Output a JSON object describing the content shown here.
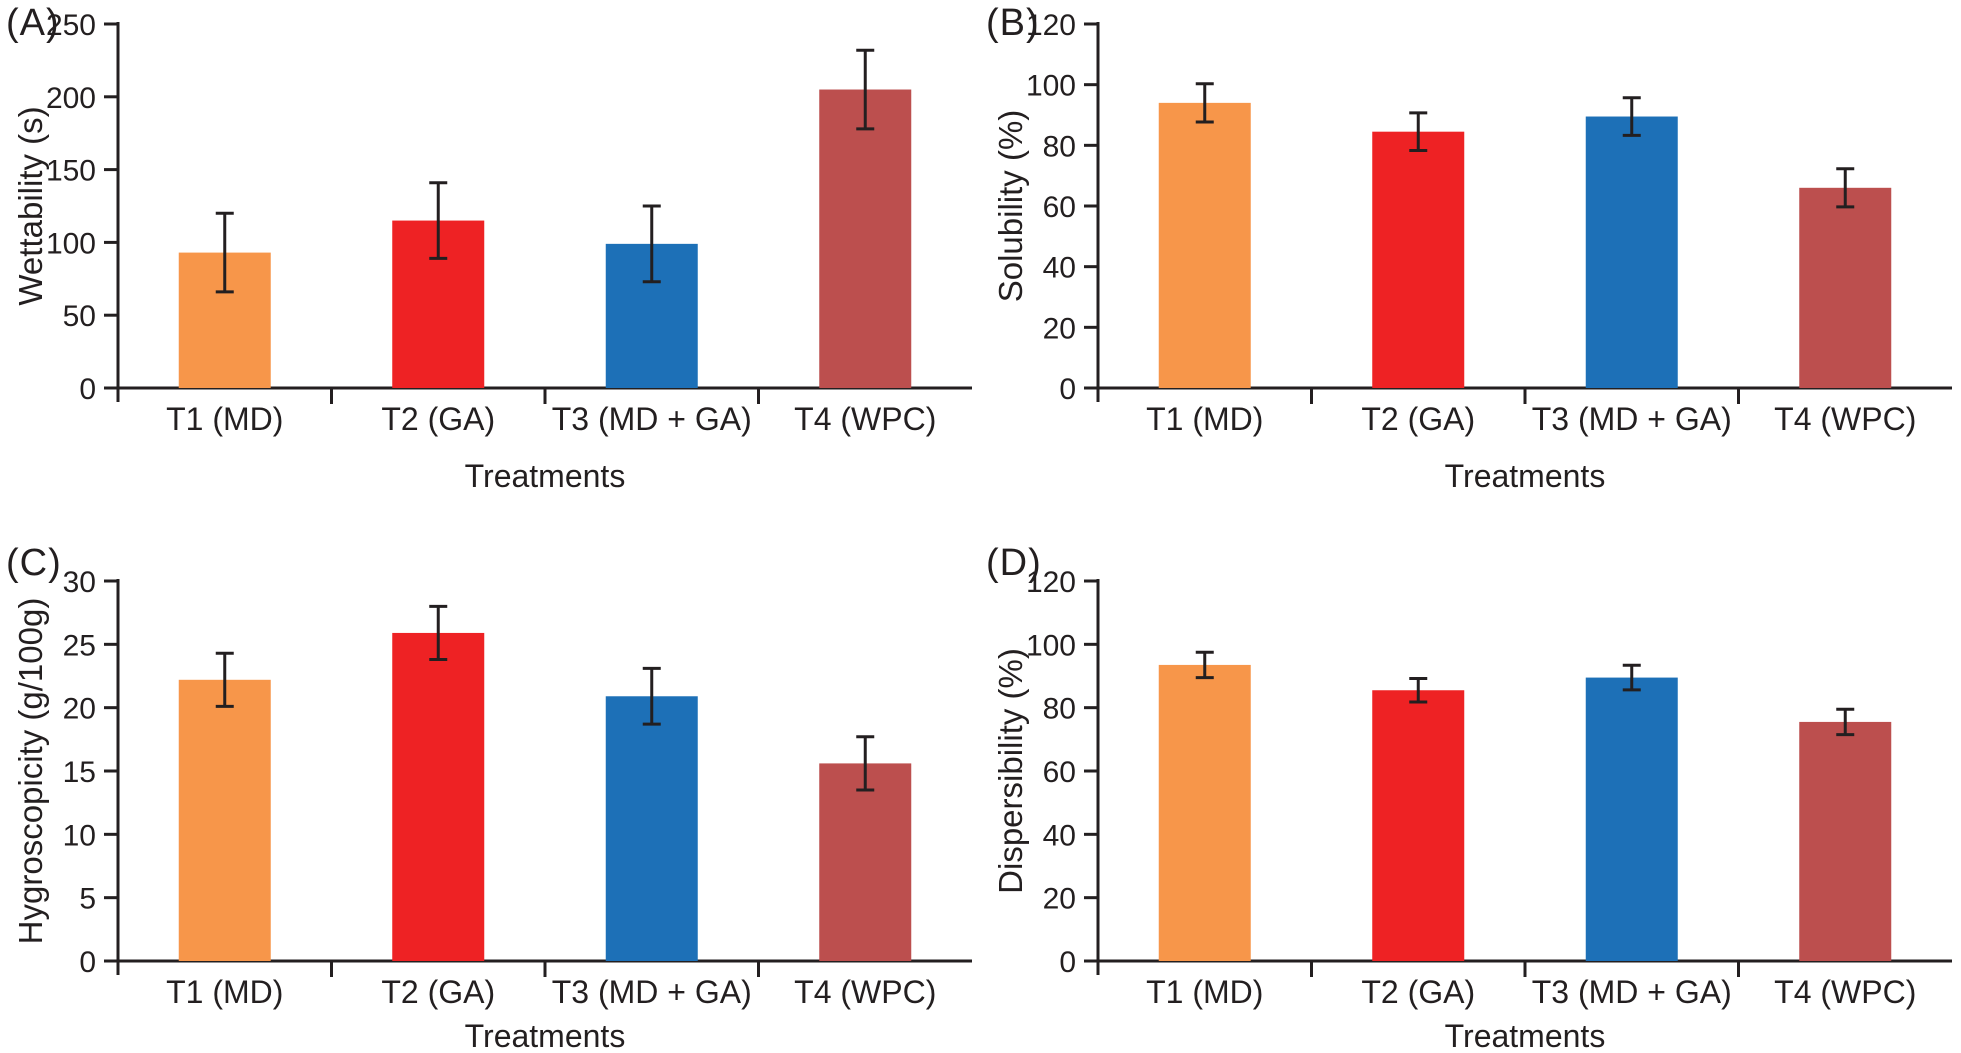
{
  "figure": {
    "background": "#ffffff",
    "axis_color": "#231F20",
    "text_color": "#231F20",
    "error_bar_color": "#231F20",
    "bar_colors": [
      "#F7964A",
      "#EE2224",
      "#1D70B7",
      "#BC4F4E"
    ]
  },
  "panels": {
    "a_label": "(A)",
    "b_label": "(B)",
    "c_label": "(C)",
    "d_label": "(D)"
  },
  "chart_data": [
    {
      "panel": "(A)",
      "type": "bar",
      "title": "",
      "ylabel": "Wettability (s)",
      "xlabel": "Treatments",
      "categories": [
        "T1 (MD)",
        "T2 (GA)",
        "T3 (MD + GA)",
        "T4 (WPC)"
      ],
      "values": [
        93,
        115,
        99,
        205
      ],
      "errors": [
        27,
        26,
        26,
        27
      ],
      "ylim": [
        0,
        250
      ],
      "ytick_step": 50,
      "grid": false,
      "legend": "none"
    },
    {
      "panel": "(B)",
      "type": "bar",
      "title": "",
      "ylabel": "Solubility (%)",
      "xlabel": "Treatments",
      "categories": [
        "T1 (MD)",
        "T2 (GA)",
        "T3 (MD + GA)",
        "T4 (WPC)"
      ],
      "values": [
        94,
        84.5,
        89.5,
        66
      ],
      "errors": [
        6.3,
        6.2,
        6.2,
        6.3
      ],
      "ylim": [
        0,
        120
      ],
      "ytick_step": 20,
      "grid": false,
      "legend": "none"
    },
    {
      "panel": "(C)",
      "type": "bar",
      "title": "",
      "ylabel": "Hygroscopicity (g/100g)",
      "xlabel": "Treatments",
      "categories": [
        "T1 (MD)",
        "T2 (GA)",
        "T3 (MD + GA)",
        "T4 (WPC)"
      ],
      "values": [
        22.2,
        25.9,
        20.9,
        15.6
      ],
      "errors": [
        2.1,
        2.1,
        2.2,
        2.1
      ],
      "ylim": [
        0,
        30
      ],
      "ytick_step": 5,
      "grid": false,
      "legend": "none"
    },
    {
      "panel": "(D)",
      "type": "bar",
      "title": "",
      "ylabel": "Dispersibility (%)",
      "xlabel": "Treatments",
      "categories": [
        "T1 (MD)",
        "T2 (GA)",
        "T3 (MD + GA)",
        "T4 (WPC)"
      ],
      "values": [
        93.5,
        85.5,
        89.5,
        75.5
      ],
      "errors": [
        4,
        3.7,
        3.9,
        4
      ],
      "ylim": [
        0,
        120
      ],
      "ytick_step": 20,
      "grid": false,
      "legend": "none"
    }
  ]
}
